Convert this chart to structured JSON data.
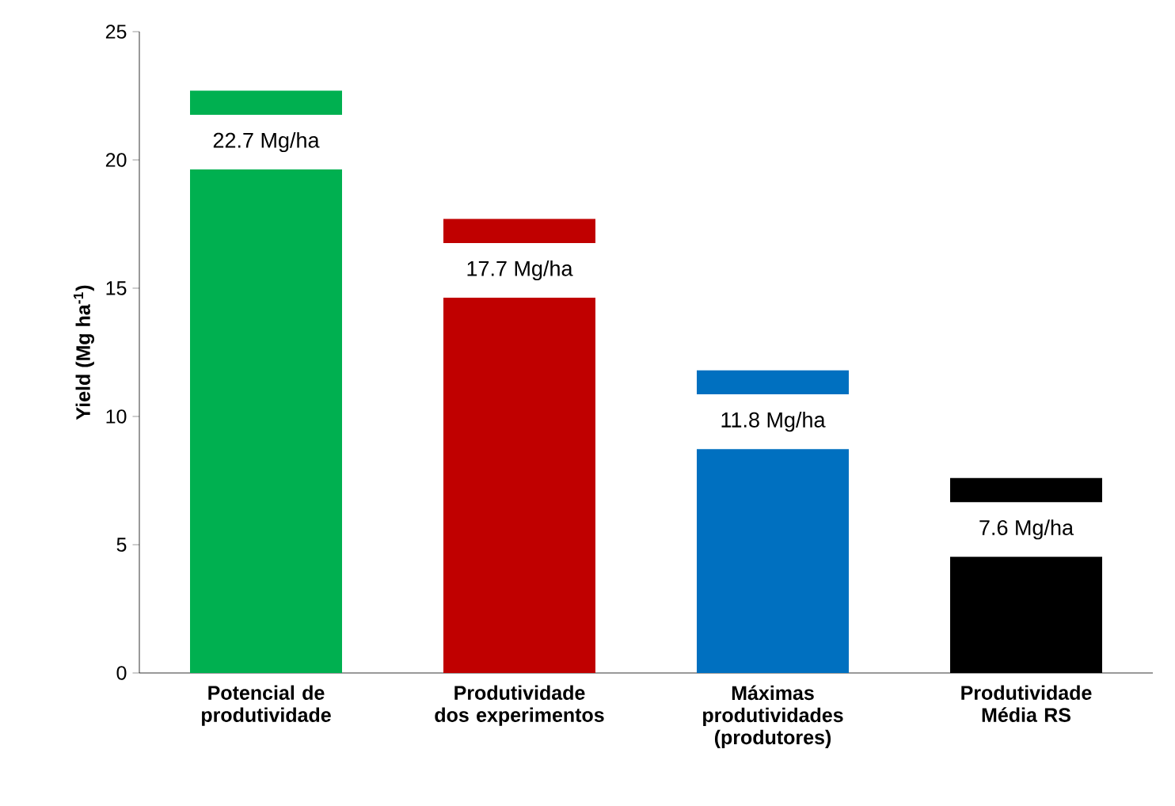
{
  "chart_data": {
    "type": "bar",
    "ylabel": "Yield (Mg ha$^{-1}$)",
    "categories": [
      "Potencial de produtividade",
      "Produtividade dos experimentos",
      "Máximas produtividades (produtores)",
      "Produtividade Média RS"
    ],
    "values": [
      22.7,
      17.7,
      11.8,
      7.6
    ],
    "colors": [
      "#00b050",
      "#c00000",
      "#0070c0",
      "#000000"
    ],
    "value_labels": [
      "22.7 Mg/ha",
      "17.7 Mg/ha",
      "11.8 Mg/ha",
      "7.6 Mg/ha"
    ],
    "ylim": [
      0,
      25
    ],
    "yticks": [
      0,
      5,
      10,
      15,
      20,
      25
    ],
    "grid": false
  }
}
